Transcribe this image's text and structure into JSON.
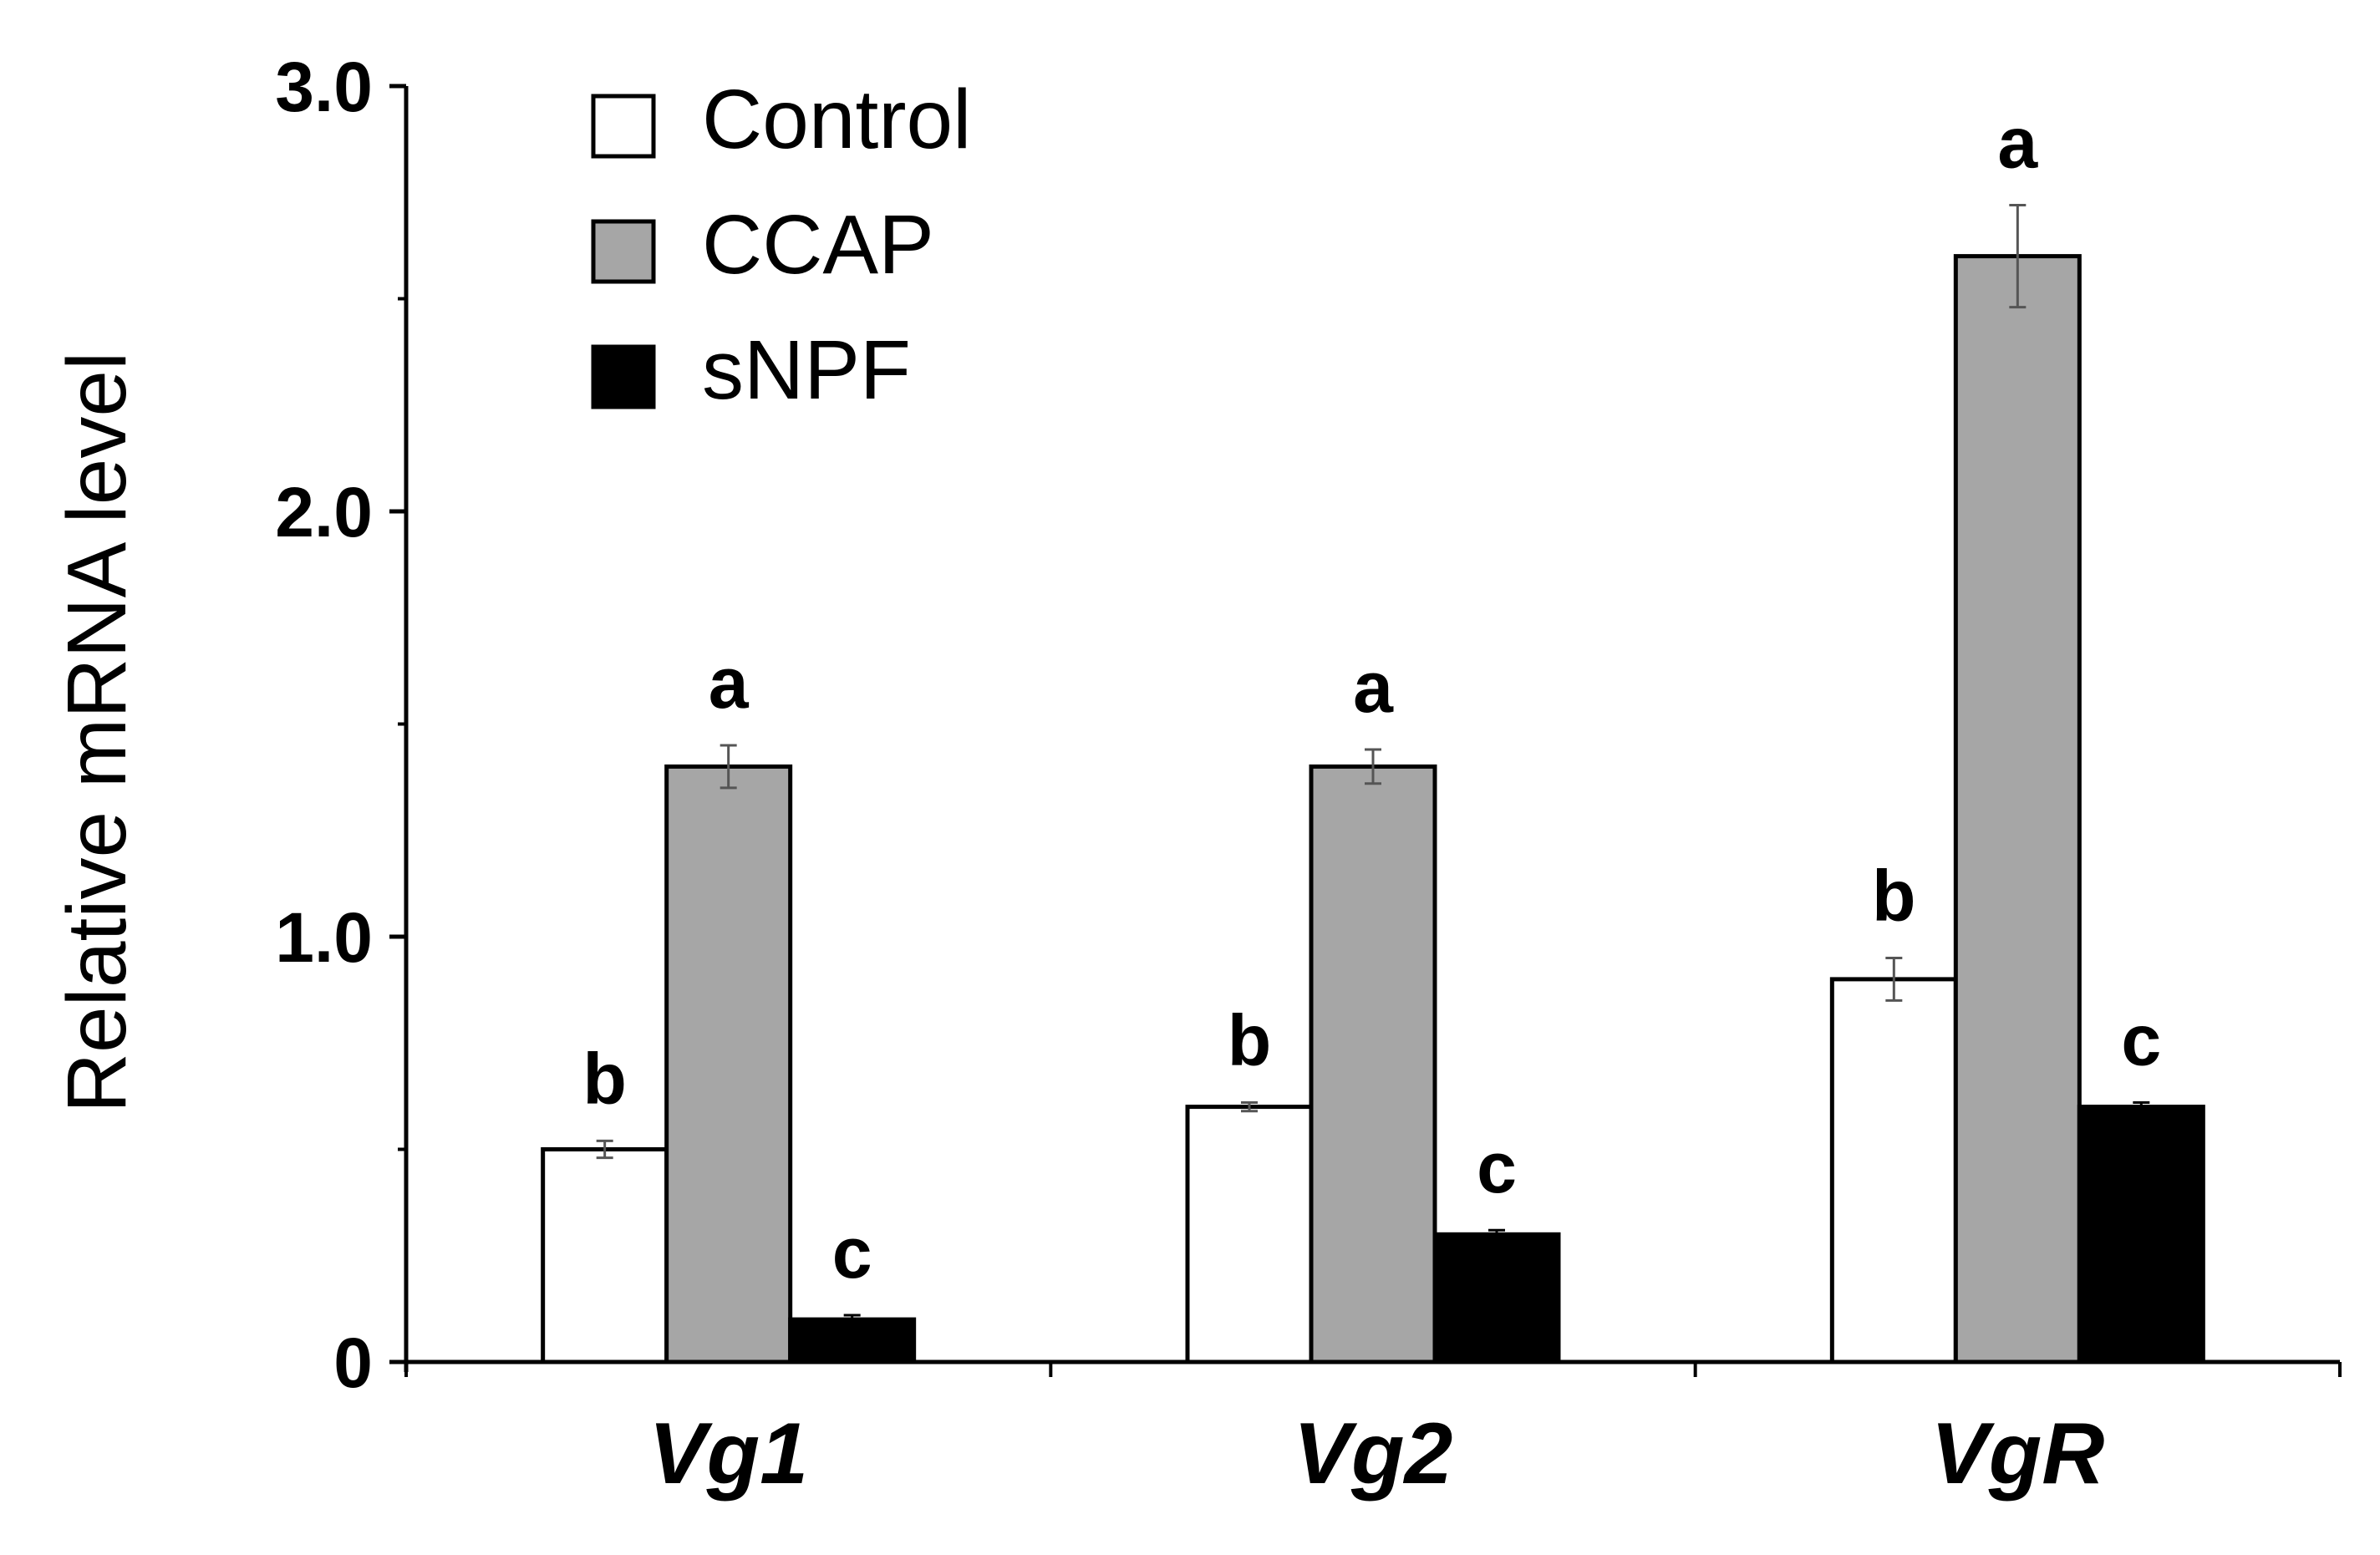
{
  "chart_data": {
    "type": "bar",
    "title": "",
    "xlabel": "",
    "ylabel": "Relative mRNA level",
    "ylim": [
      0,
      3.0
    ],
    "yticks": [
      0,
      1.0,
      2.0,
      3.0
    ],
    "ytick_labels": [
      "0",
      "1.0",
      "2.0",
      "3.0"
    ],
    "categories": [
      "Vg1",
      "Vg2",
      "VgR"
    ],
    "legend_position": "top-left",
    "grid": false,
    "series": [
      {
        "name": "Control",
        "color": "#ffffff",
        "values": [
          0.5,
          0.6,
          0.9
        ],
        "errors": [
          0.02,
          0.01,
          0.05
        ],
        "letters": [
          "b",
          "b",
          "b"
        ]
      },
      {
        "name": "CCAP",
        "color": "#a6a6a6",
        "values": [
          1.4,
          1.4,
          2.6
        ],
        "errors": [
          0.05,
          0.04,
          0.12
        ],
        "letters": [
          "a",
          "a",
          "a"
        ]
      },
      {
        "name": "sNPF",
        "color": "#000000",
        "values": [
          0.1,
          0.3,
          0.6
        ],
        "errors": [
          0.01,
          0.01,
          0.01
        ],
        "letters": [
          "c",
          "c",
          "c"
        ]
      }
    ]
  }
}
